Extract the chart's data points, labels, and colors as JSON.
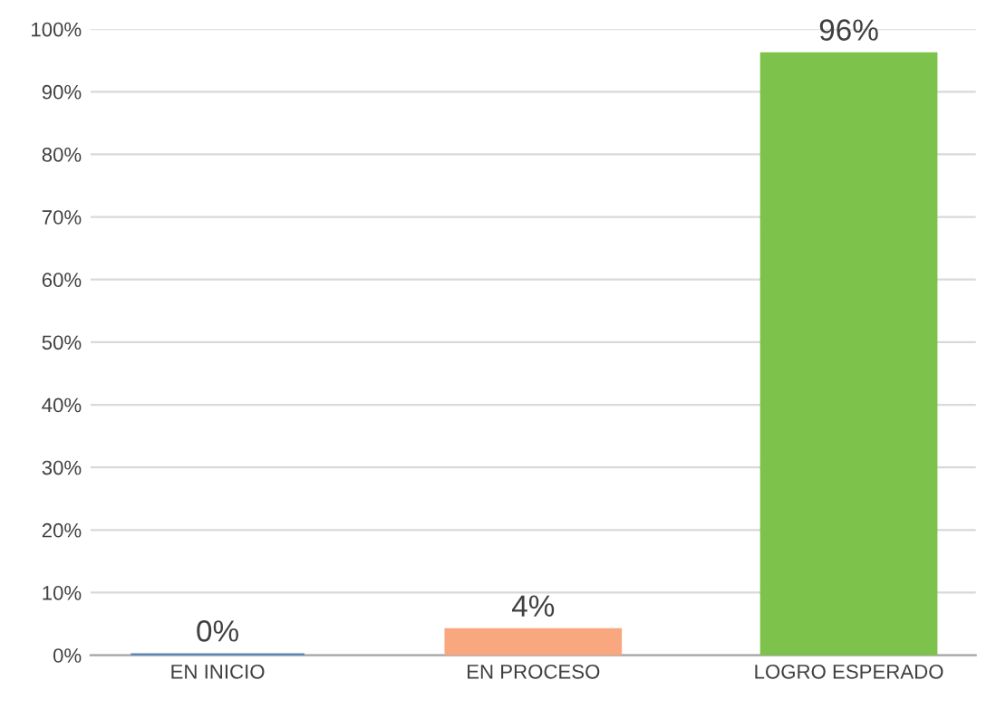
{
  "chart_data": {
    "type": "bar",
    "categories": [
      "EN INICIO",
      "EN PROCESO",
      "LOGRO ESPERADO"
    ],
    "values": [
      0,
      4,
      96
    ],
    "colors": [
      "#4f81bd",
      "#f9a77f",
      "#7dc24b"
    ],
    "value_labels": [
      "0%",
      "4%",
      "96%"
    ],
    "ylim": [
      0,
      100
    ],
    "yticks": [
      {
        "value": 0,
        "label": "0%"
      },
      {
        "value": 10,
        "label": "10%"
      },
      {
        "value": 20,
        "label": "20%"
      },
      {
        "value": 30,
        "label": "30%"
      },
      {
        "value": 40,
        "label": "40%"
      },
      {
        "value": 50,
        "label": "50%"
      },
      {
        "value": 60,
        "label": "60%"
      },
      {
        "value": 70,
        "label": "70%"
      },
      {
        "value": 80,
        "label": "80%"
      },
      {
        "value": 90,
        "label": "90%"
      },
      {
        "value": 100,
        "label": "100%"
      }
    ],
    "grid": "y"
  }
}
